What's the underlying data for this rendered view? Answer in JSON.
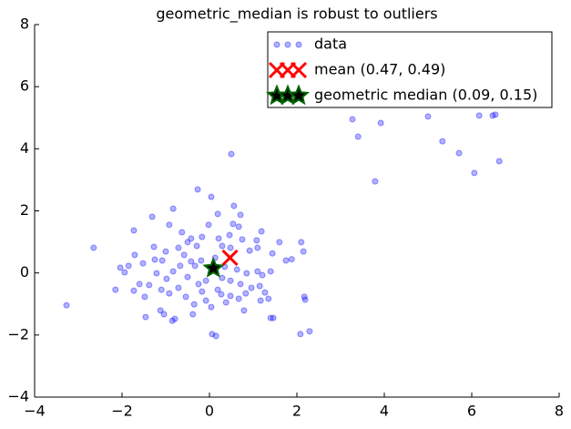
{
  "chart_data": {
    "type": "scatter",
    "title": "geometric_median is robust to outliers",
    "xlim": [
      -4,
      8
    ],
    "ylim": [
      -4,
      8
    ],
    "xticks": [
      {
        "value": -4,
        "label": "−4"
      },
      {
        "value": -2,
        "label": "−2"
      },
      0,
      2,
      4,
      6,
      8
    ],
    "yticks": [
      {
        "value": -4,
        "label": "−4"
      },
      {
        "value": -2,
        "label": "−2"
      },
      0,
      2,
      4,
      6,
      8
    ],
    "legend": "upper right",
    "series": [
      {
        "name": "data",
        "color": "#0000ff",
        "marker": "o",
        "x": [
          3.27,
          3.4,
          3.92,
          5.0,
          5.33,
          5.71,
          6.17,
          6.48,
          6.54,
          6.06,
          6.63,
          3.79,
          0.5,
          -2.65,
          -3.27,
          -2.15,
          -2.04,
          -1.94,
          -1.73,
          -1.31,
          -0.83,
          -0.27,
          0.04,
          -0.92,
          0.19,
          0.56,
          0.71,
          -0.02,
          0.67,
          0.46,
          2.1,
          2.15,
          1.88,
          1.75,
          1.4,
          2.17,
          2.19,
          2.29,
          2.08,
          1.46,
          1.4,
          0.79,
          0.15,
          0.06,
          -0.79,
          -0.85,
          -1.46,
          -1.12,
          -1.04,
          -1.48,
          -1.73,
          -1.6,
          -1.71,
          -1.52,
          -1.27,
          -1.08,
          -1.0,
          -0.71,
          -0.5,
          -0.29,
          -0.17,
          0.29,
          0.48,
          0.92,
          1.1,
          1.08,
          1.19,
          -0.58,
          -0.42,
          -0.19,
          0.13,
          0.35,
          0.63,
          0.85,
          1.1,
          1.21,
          -0.83,
          -0.98,
          -1.21,
          -1.38,
          -1.1,
          -0.92,
          -0.71,
          -0.54,
          -0.35,
          -0.38,
          -0.17,
          -0.08,
          0.04,
          0.27,
          0.38,
          0.48,
          0.67,
          0.83,
          0.96,
          1.15,
          1.27,
          1.35,
          1.17,
          -0.08,
          -0.25,
          -0.5,
          -0.67,
          -0.33,
          0.29,
          0.48,
          0.71,
          0.19,
          -1.25,
          -1.85,
          -0.63,
          -0.42,
          0.21,
          0.54,
          0.75,
          1.44,
          1.6
        ],
        "values": [
          4.95,
          4.39,
          4.83,
          5.04,
          4.24,
          3.86,
          5.07,
          5.07,
          5.1,
          3.22,
          3.6,
          2.95,
          3.83,
          0.81,
          -1.04,
          -0.54,
          0.17,
          0.02,
          1.37,
          1.81,
          2.07,
          2.69,
          2.45,
          1.55,
          1.9,
          2.16,
          1.87,
          1.55,
          1.49,
          1.22,
          0.99,
          0.69,
          0.44,
          0.4,
          0.05,
          -0.77,
          -0.86,
          -1.88,
          -1.97,
          -1.45,
          -1.45,
          -1.21,
          -2.03,
          -1.97,
          -1.48,
          -1.54,
          -1.42,
          -1.21,
          -1.33,
          -0.77,
          -0.57,
          -0.36,
          0.58,
          0.31,
          0.84,
          0.4,
          0.69,
          0.81,
          0.99,
          0.87,
          1.16,
          0.87,
          0.81,
          0.72,
          0.81,
          1.05,
          1.34,
          0.58,
          0.37,
          0.4,
          0.49,
          0.2,
          0.11,
          -0.01,
          0.05,
          -0.07,
          0.05,
          -0.19,
          -0.01,
          -0.39,
          -0.54,
          -0.66,
          -0.48,
          -0.77,
          -1.01,
          -1.33,
          -0.6,
          -0.89,
          -1.1,
          -0.69,
          -0.95,
          -0.74,
          -0.83,
          -0.66,
          -0.48,
          -0.42,
          -0.63,
          -0.83,
          -0.89,
          -0.25,
          -0.36,
          -0.13,
          0.23,
          0.23,
          -0.16,
          -0.25,
          -0.36,
          -0.54,
          0.43,
          0.23,
          1.31,
          1.11,
          1.11,
          1.58,
          1.08,
          0.63,
          0.99
        ]
      },
      {
        "name": "mean (0.47, 0.49)",
        "color": "#ff0000",
        "marker": "x",
        "x": [
          0.47
        ],
        "values": [
          0.49
        ]
      },
      {
        "name": "geometric median (0.09, 0.15)",
        "color": "#000000",
        "marker": "*",
        "x": [
          0.09
        ],
        "values": [
          0.15
        ]
      }
    ]
  }
}
